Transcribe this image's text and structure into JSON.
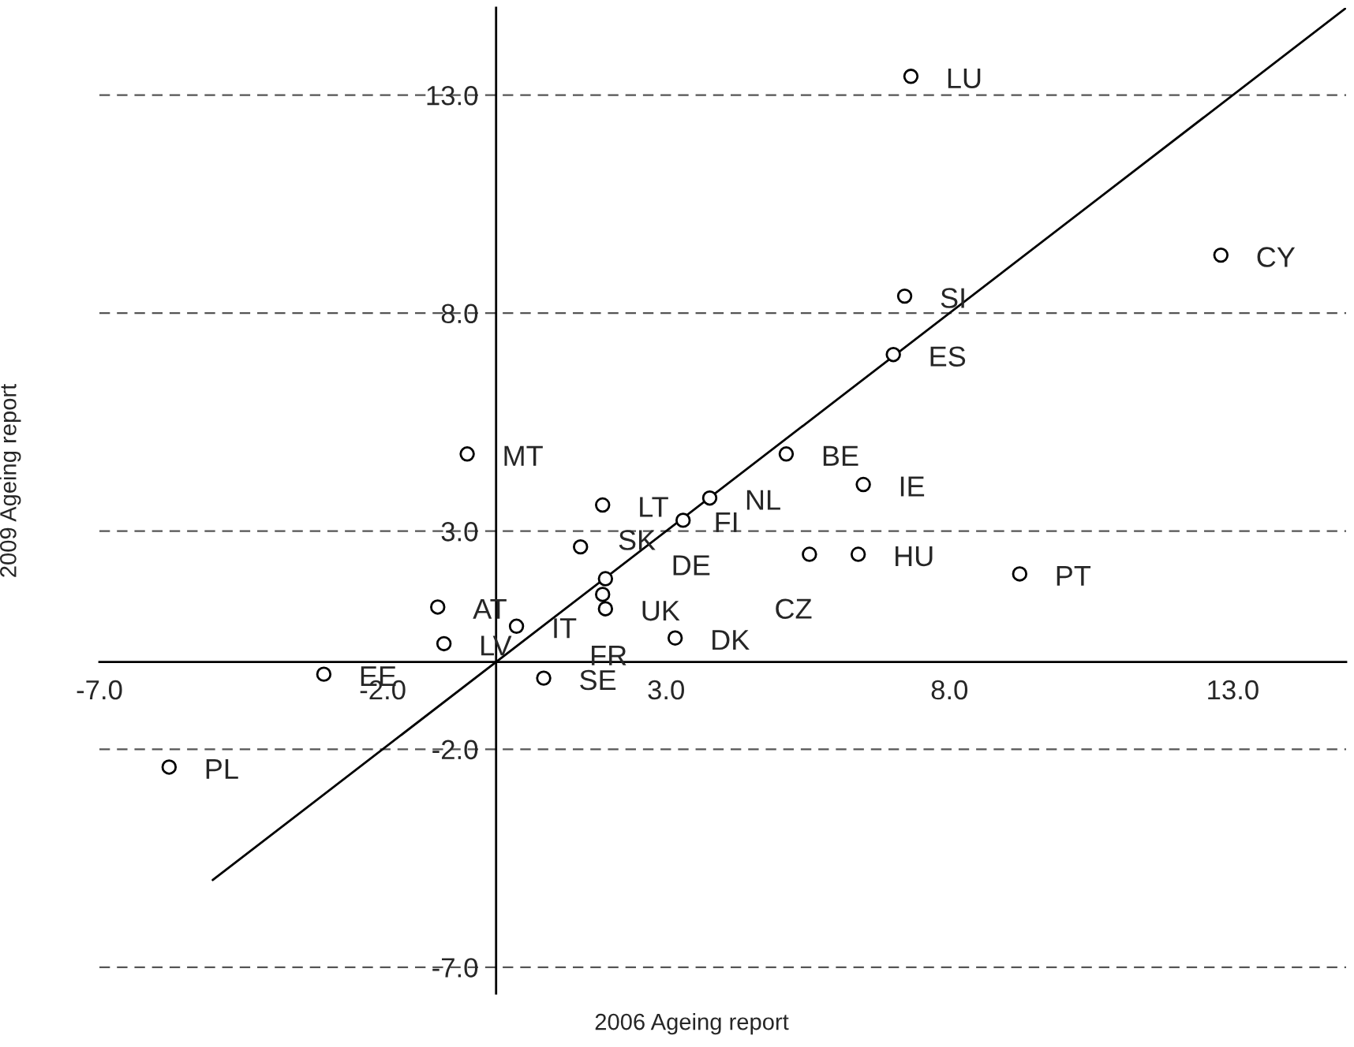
{
  "chart_data": {
    "type": "scatter",
    "xlabel": "2006 Ageing report",
    "ylabel": "2009 Ageing report",
    "xlim": [
      -7.0,
      15.0
    ],
    "ylim": [
      -7.6,
      15.0
    ],
    "xticks": [
      {
        "value": -7,
        "label": "-7.0"
      },
      {
        "value": -2,
        "label": "-2.0"
      },
      {
        "value": 3,
        "label": "3.0"
      },
      {
        "value": 8,
        "label": "8.0"
      },
      {
        "value": 13,
        "label": "13.0"
      }
    ],
    "yticks": [
      {
        "value": -7,
        "label": "-7.0"
      },
      {
        "value": -2,
        "label": "-2.0"
      },
      {
        "value": 3,
        "label": "3.0"
      },
      {
        "value": 8,
        "label": "8.0"
      },
      {
        "value": 13,
        "label": "13.0"
      }
    ],
    "grid": "y",
    "legend": false,
    "series": [
      {
        "type": "scatter",
        "color": "#000000",
        "marker": "circle",
        "x": [
          7.32,
          12.79,
          7.21,
          7.01,
          -0.51,
          5.12,
          6.48,
          1.88,
          3.77,
          3.3,
          1.49,
          1.93,
          1.93,
          1.88,
          -1.03,
          0.36,
          -0.92,
          3.16,
          0.84,
          -3.04,
          -5.77,
          5.53,
          6.39,
          9.24
        ],
        "values": [
          13.43,
          9.33,
          8.39,
          7.05,
          4.77,
          4.77,
          4.07,
          3.6,
          3.76,
          3.25,
          2.64,
          1.91,
          1.22,
          1.55,
          1.26,
          0.82,
          0.42,
          0.55,
          -0.37,
          -0.28,
          -2.41,
          2.47,
          2.47,
          2.02
        ]
      },
      {
        "type": "line",
        "color": "#000000",
        "marker": "none",
        "line_style": "solid",
        "x": [
          -5,
          15
        ],
        "values": [
          -5,
          15
        ]
      }
    ],
    "annotations": [
      {
        "text": "LU",
        "x": 7.32,
        "y": 13.43
      },
      {
        "text": "CY",
        "x": 12.79,
        "y": 9.33
      },
      {
        "text": "SI",
        "x": 7.21,
        "y": 8.39
      },
      {
        "text": "ES",
        "x": 7.01,
        "y": 7.05
      },
      {
        "text": "MT",
        "x": -0.51,
        "y": 4.77
      },
      {
        "text": "BE",
        "x": 5.12,
        "y": 4.77
      },
      {
        "text": "IE",
        "x": 6.48,
        "y": 4.07
      },
      {
        "text": "LT",
        "x": 1.88,
        "y": 3.6
      },
      {
        "text": "NL",
        "x": 3.77,
        "y": 3.76
      },
      {
        "text": "FI",
        "x": 3.3,
        "y": 3.25
      },
      {
        "text": "SK",
        "x": 1.49,
        "y": 2.64
      },
      {
        "text": "DE",
        "x": 1.93,
        "y": 1.91
      },
      {
        "text": "UK",
        "x": 1.93,
        "y": 1.22
      },
      {
        "text": "FR",
        "x": 1.88,
        "y": 1.55
      },
      {
        "text": "AT",
        "x": -1.03,
        "y": 1.26
      },
      {
        "text": "IT",
        "x": 0.36,
        "y": 0.82
      },
      {
        "text": "LV",
        "x": -0.92,
        "y": 0.42
      },
      {
        "text": "DK",
        "x": 3.16,
        "y": 0.55
      },
      {
        "text": "SE",
        "x": 0.84,
        "y": -0.37
      },
      {
        "text": "EE",
        "x": -3.04,
        "y": -0.28
      },
      {
        "text": "PL",
        "x": -5.77,
        "y": -2.41
      },
      {
        "text": "CZ",
        "x": 5.53,
        "y": 2.47
      },
      {
        "text": "HU",
        "x": 6.39,
        "y": 2.47
      },
      {
        "text": "PT",
        "x": 9.24,
        "y": 2.02
      }
    ]
  }
}
